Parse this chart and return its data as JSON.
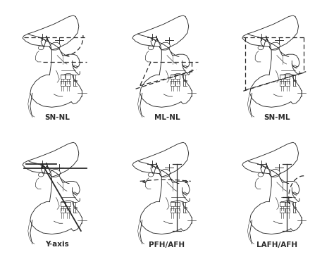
{
  "background_color": "#ffffff",
  "line_color": "#2a2a2a",
  "panels": [
    {
      "label": "SN-NL",
      "row": 0,
      "col": 0
    },
    {
      "label": "ML-NL",
      "row": 0,
      "col": 1
    },
    {
      "label": "SN-ML",
      "row": 0,
      "col": 2
    },
    {
      "label": "Y-axis",
      "row": 1,
      "col": 0
    },
    {
      "label": "PFH/AFH",
      "row": 1,
      "col": 1
    },
    {
      "label": "LAFH/AFH",
      "row": 1,
      "col": 2
    }
  ],
  "label_fontsize": 7.5,
  "label_fontweight": "bold"
}
